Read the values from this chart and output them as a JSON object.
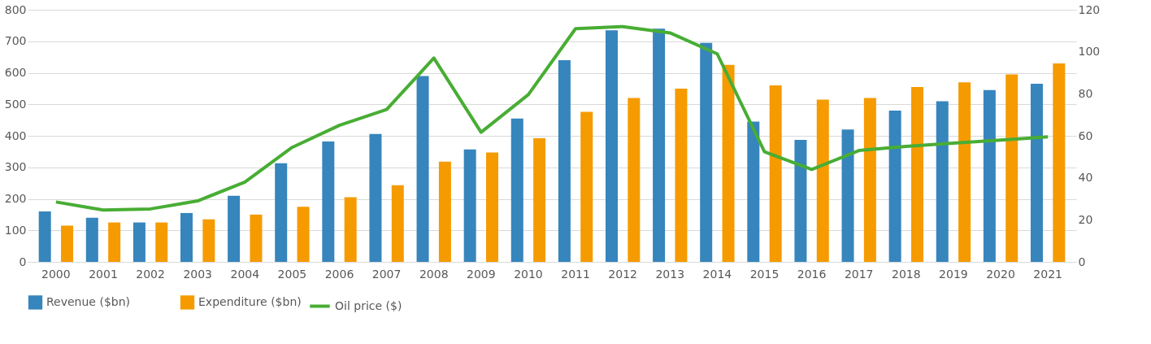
{
  "chart_data": {
    "type": "bar",
    "categories": [
      "2000",
      "2001",
      "2002",
      "2003",
      "2004",
      "2005",
      "2006",
      "2007",
      "2008",
      "2009",
      "2010",
      "2011",
      "2012",
      "2013",
      "2014",
      "2015",
      "2016",
      "2017",
      "2018",
      "2019",
      "2020",
      "2021"
    ],
    "series": [
      {
        "name": "Revenue ($bn)",
        "color": "#3685bc",
        "values": [
          160,
          140,
          125,
          155,
          210,
          313,
          382,
          406,
          590,
          357,
          455,
          640,
          735,
          740,
          695,
          445,
          387,
          420,
          480,
          510,
          545,
          565
        ]
      },
      {
        "name": "Expenditure ($bn)",
        "color": "#f59b00",
        "values": [
          115,
          125,
          125,
          135,
          150,
          175,
          205,
          243,
          318,
          347,
          392,
          476,
          520,
          550,
          625,
          560,
          515,
          520,
          555,
          570,
          595,
          630
        ]
      },
      {
        "name": "Oil price ($)",
        "type": "line",
        "axis": "y2",
        "color": "#48ad34",
        "values": [
          28.5,
          24.7,
          25.2,
          29,
          38,
          54.5,
          65,
          72.5,
          97,
          61.7,
          79.6,
          111,
          112,
          109,
          99,
          52.4,
          44,
          53,
          55,
          56.5,
          58,
          59.5
        ]
      }
    ],
    "ylim": [
      0,
      800
    ],
    "yticks": [
      0,
      100,
      200,
      300,
      400,
      500,
      600,
      700,
      800
    ],
    "y2lim": [
      0,
      120
    ],
    "y2ticks": [
      0,
      20,
      40,
      60,
      80,
      100,
      120
    ],
    "grid": "y",
    "legend": "bottom",
    "marker": "none",
    "line_style": "solid"
  }
}
